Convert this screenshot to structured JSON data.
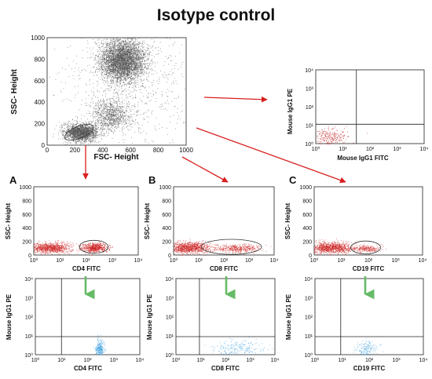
{
  "title": "Isotype control",
  "chart_data": [
    {
      "id": "top",
      "type": "scatter",
      "xlabel": "FSC- Height",
      "ylabel": "SSC- Height",
      "xlim": [
        0,
        1000
      ],
      "ylim": [
        0,
        1000
      ],
      "xticks": [
        "0",
        "200",
        "400",
        "600",
        "800",
        "1000"
      ],
      "yticks": [
        "0",
        "200",
        "400",
        "600",
        "800",
        "1000"
      ],
      "clusters": [
        {
          "cx": 540,
          "cy": 790,
          "sx": 80,
          "sy": 100,
          "n": 4200
        },
        {
          "cx": 460,
          "cy": 280,
          "sx": 65,
          "sy": 70,
          "n": 900
        },
        {
          "cx": 240,
          "cy": 120,
          "sx": 60,
          "sy": 40,
          "n": 2000
        },
        {
          "cx": 600,
          "cy": 500,
          "sx": 250,
          "sy": 280,
          "n": 800
        }
      ],
      "gate": {
        "cx": 230,
        "cy": 120,
        "rx": 110,
        "ry": 55
      },
      "colors": {
        "dots": "#555555"
      }
    },
    {
      "id": "iso",
      "type": "scatter",
      "xlabel": "Mouse  IgG1 FITC",
      "ylabel": "Mouse IgG1 PE",
      "xlim": [
        0,
        4
      ],
      "ylim": [
        0,
        4
      ],
      "log": true,
      "xticks": [
        "10⁰",
        "10¹",
        "10²",
        "10³",
        "10⁴"
      ],
      "yticks": [
        "10⁰",
        "10¹",
        "10²",
        "10³",
        "10⁴"
      ],
      "quadrant": {
        "x": 1.5,
        "y": 1.05
      },
      "clusters": [
        {
          "cx": 0.5,
          "cy": 0.35,
          "sx": 0.35,
          "sy": 0.25,
          "n": 260
        }
      ],
      "colors": {
        "dots": "#bb1111"
      }
    },
    {
      "id": "A1",
      "panel": "A",
      "type": "scatter",
      "xlabel": "CD4 FITC",
      "ylabel": "SSC- Height",
      "xlim": [
        0,
        4
      ],
      "ylim": [
        0,
        1000
      ],
      "log": true,
      "xticks": [
        "10⁰",
        "10¹",
        "10²",
        "10³",
        "10⁴"
      ],
      "yticks": [
        "0",
        "200",
        "400",
        "600",
        "800",
        "1000"
      ],
      "gate": {
        "cx": 2.3,
        "cy": 120,
        "rx": 0.55,
        "ry": 95
      },
      "clusters": [
        {
          "cx": 0.6,
          "cy": 110,
          "sx": 0.4,
          "sy": 40,
          "n": 900
        },
        {
          "cx": 2.3,
          "cy": 110,
          "sx": 0.25,
          "sy": 35,
          "n": 650
        }
      ],
      "colors": {
        "dots": "#cc2222"
      }
    },
    {
      "id": "B1",
      "panel": "B",
      "type": "scatter",
      "xlabel": "CD8 FITC",
      "ylabel": "SSC- Height",
      "xlim": [
        0,
        4
      ],
      "ylim": [
        0,
        1000
      ],
      "log": true,
      "xticks": [
        "10⁰",
        "10¹",
        "10²",
        "10³",
        "10⁴"
      ],
      "yticks": [
        "0",
        "200",
        "400",
        "600",
        "800",
        "1000"
      ],
      "gate": {
        "cx": 2.3,
        "cy": 120,
        "rx": 1.2,
        "ry": 110
      },
      "clusters": [
        {
          "cx": 0.6,
          "cy": 110,
          "sx": 0.45,
          "sy": 40,
          "n": 1000
        },
        {
          "cx": 2.6,
          "cy": 100,
          "sx": 0.45,
          "sy": 30,
          "n": 400
        }
      ],
      "colors": {
        "dots": "#cc2222"
      }
    },
    {
      "id": "C1",
      "panel": "C",
      "type": "scatter",
      "xlabel": "CD19 FITC",
      "ylabel": "SSC- Height",
      "xlim": [
        0,
        4
      ],
      "ylim": [
        0,
        1000
      ],
      "log": true,
      "xticks": [
        "10⁰",
        "10¹",
        "10²",
        "10³",
        "10⁴"
      ],
      "yticks": [
        "0",
        "200",
        "400",
        "600",
        "800",
        "1000"
      ],
      "gate": {
        "cx": 1.9,
        "cy": 110,
        "rx": 0.55,
        "ry": 95
      },
      "clusters": [
        {
          "cx": 0.6,
          "cy": 110,
          "sx": 0.4,
          "sy": 40,
          "n": 1000
        },
        {
          "cx": 1.9,
          "cy": 95,
          "sx": 0.25,
          "sy": 25,
          "n": 250
        }
      ],
      "colors": {
        "dots": "#cc2222"
      }
    },
    {
      "id": "A2",
      "panel": "A",
      "type": "scatter",
      "xlabel": "CD4 FITC",
      "ylabel": "Mouse  IgG1 PE",
      "xlim": [
        0,
        4
      ],
      "ylim": [
        0,
        4
      ],
      "log": true,
      "xticks": [
        "10⁰",
        "10¹",
        "10²",
        "10³",
        "10⁴"
      ],
      "yticks": [
        "10⁰",
        "10¹",
        "10²",
        "10³",
        "10⁴"
      ],
      "quadrant": {
        "x": 1.0,
        "y": 0.95
      },
      "clusters": [
        {
          "cx": 2.45,
          "cy": 0.3,
          "sx": 0.08,
          "sy": 0.25,
          "n": 260
        }
      ],
      "colors": {
        "dots": "#3399dd"
      }
    },
    {
      "id": "B2",
      "panel": "B",
      "type": "scatter",
      "xlabel": "CD8 FITC",
      "ylabel": "Mouse  IgG1 PE",
      "xlim": [
        0,
        4
      ],
      "ylim": [
        0,
        4
      ],
      "log": true,
      "xticks": [
        "10⁰",
        "10¹",
        "10²",
        "10³",
        "10⁴"
      ],
      "yticks": [
        "10⁰",
        "10¹",
        "10²",
        "10³",
        "10⁴"
      ],
      "quadrant": {
        "x": 0.95,
        "y": 0.95
      },
      "clusters": [
        {
          "cx": 2.5,
          "cy": 0.3,
          "sx": 0.55,
          "sy": 0.25,
          "n": 220
        }
      ],
      "colors": {
        "dots": "#3399dd"
      }
    },
    {
      "id": "C2",
      "panel": "C",
      "type": "scatter",
      "xlabel": "CD19 FITC",
      "ylabel": "Mouse IgG1 PE",
      "xlim": [
        0,
        4
      ],
      "ylim": [
        0,
        4
      ],
      "log": true,
      "xticks": [
        "10⁰",
        "10¹",
        "10²",
        "10³",
        "10⁴"
      ],
      "yticks": [
        "10⁰",
        "10¹",
        "10²",
        "10³",
        "10⁴"
      ],
      "quadrant": {
        "x": 0.95,
        "y": 0.95
      },
      "clusters": [
        {
          "cx": 1.9,
          "cy": 0.3,
          "sx": 0.2,
          "sy": 0.25,
          "n": 160
        }
      ],
      "colors": {
        "dots": "#3399dd"
      }
    }
  ],
  "arrows": {
    "red": "#d81e1e",
    "green": "#66bb66"
  }
}
